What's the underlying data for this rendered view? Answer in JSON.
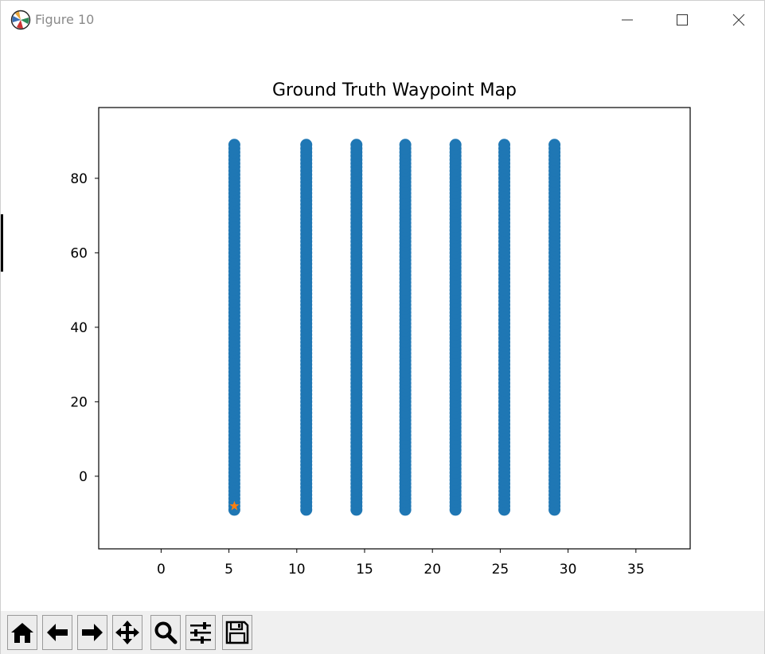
{
  "window": {
    "title": "Figure 10",
    "controls": [
      "minimize-icon",
      "maximize-icon",
      "close-icon"
    ]
  },
  "toolbar": {
    "buttons": [
      {
        "name": "home-button",
        "icon": "home-icon"
      },
      {
        "name": "back-button",
        "icon": "arrow-left-icon"
      },
      {
        "name": "forward-button",
        "icon": "arrow-right-icon"
      },
      {
        "name": "pan-button",
        "icon": "move-icon"
      },
      {
        "name": "zoom-button",
        "icon": "magnifier-icon"
      },
      {
        "name": "subplots-button",
        "icon": "sliders-icon"
      },
      {
        "name": "save-button",
        "icon": "floppy-disk-icon"
      }
    ]
  },
  "chart_data": {
    "type": "scatter",
    "title": "Ground Truth Waypoint Map",
    "xlabel": "",
    "ylabel": "",
    "xlim": [
      -4.6,
      39.0
    ],
    "ylim": [
      -19.5,
      99.0
    ],
    "xticks": [
      0,
      5,
      10,
      15,
      20,
      25,
      30,
      35
    ],
    "yticks": [
      0,
      20,
      40,
      60,
      80
    ],
    "grid": false,
    "colors": {
      "waypoints": "#1f77b4",
      "start": "#ff7f0e"
    },
    "series": [
      {
        "marker": "circle",
        "color": "#1f77b4",
        "lines": [
          {
            "x": 5.4,
            "y_start": -9.0,
            "y_end": 89.0
          },
          {
            "x": 10.7,
            "y_start": -9.0,
            "y_end": 89.0
          },
          {
            "x": 14.4,
            "y_start": -9.0,
            "y_end": 89.0
          },
          {
            "x": 18.0,
            "y_start": -9.0,
            "y_end": 89.0
          },
          {
            "x": 21.7,
            "y_start": -9.0,
            "y_end": 89.0
          },
          {
            "x": 25.3,
            "y_start": -9.0,
            "y_end": 89.0
          },
          {
            "x": 29.0,
            "y_start": -9.0,
            "y_end": 89.0
          }
        ],
        "y_step": 1.0
      },
      {
        "marker": "star",
        "color": "#ff7f0e",
        "points": [
          {
            "x": 5.4,
            "y": -8.0
          }
        ]
      }
    ]
  }
}
